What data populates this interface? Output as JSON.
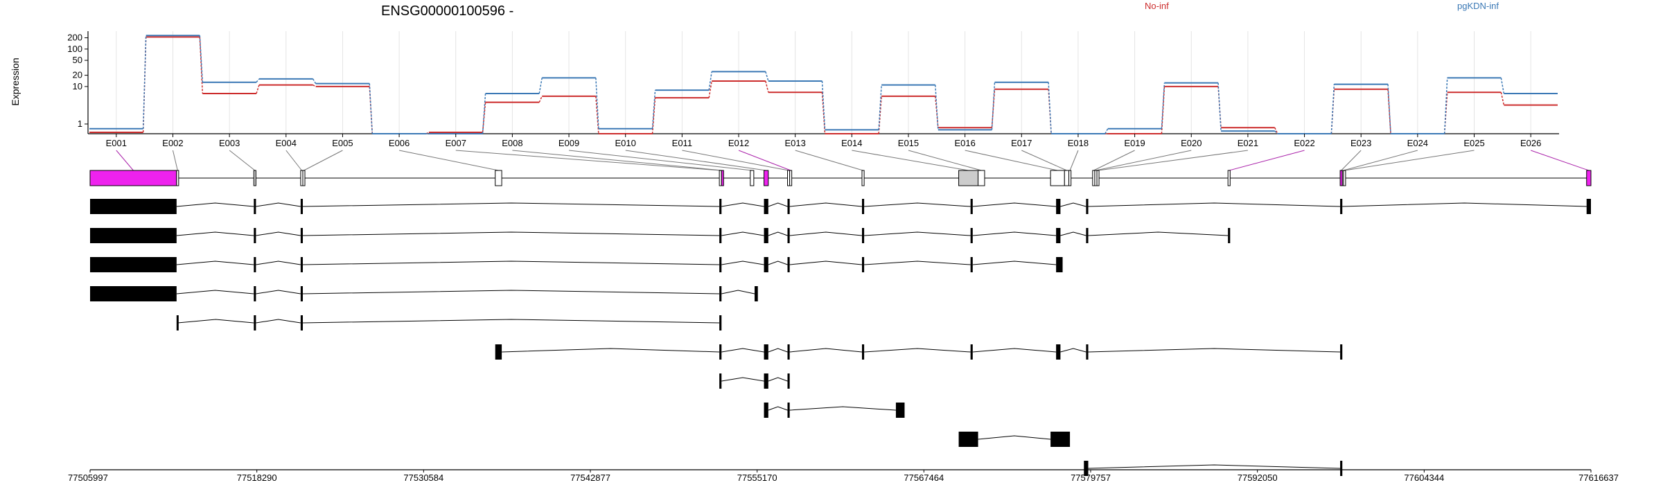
{
  "chart_data": {
    "type": "line",
    "title": "ENSG00000100596 -",
    "ylabel": "Expression",
    "y_scale": "log",
    "ylim": [
      0.55,
      300
    ],
    "y_ticks": [
      1,
      10,
      20,
      50,
      100,
      200
    ],
    "exons": [
      "E001",
      "E002",
      "E003",
      "E004",
      "E005",
      "E006",
      "E007",
      "E008",
      "E009",
      "E010",
      "E011",
      "E012",
      "E013",
      "E014",
      "E015",
      "E016",
      "E017",
      "E018",
      "E019",
      "E020",
      "E021",
      "E022",
      "E023",
      "E024",
      "E025",
      "E026"
    ],
    "series": [
      {
        "name": "No-inf",
        "color": "#cc2b2b",
        "values": [
          0.6,
          210,
          6.5,
          11,
          10,
          0.55,
          0.6,
          3.8,
          5.5,
          0.55,
          5,
          14,
          7,
          0.55,
          5.5,
          0.8,
          8.5,
          0.55,
          0.55,
          10,
          0.8,
          0.55,
          8.5,
          0.55,
          7,
          3.2
        ]
      },
      {
        "name": "pgKDN-inf",
        "color": "#3a78b5",
        "values": [
          0.75,
          230,
          13,
          16,
          12,
          0.55,
          0.55,
          6.5,
          17,
          0.75,
          8,
          25,
          14,
          0.7,
          11,
          0.7,
          13,
          0.55,
          0.75,
          12.5,
          0.65,
          0.55,
          11.5,
          0.55,
          17,
          6.5
        ]
      }
    ],
    "gene_track": {
      "coordinates": [
        "77505997",
        "77518290",
        "77530584",
        "77542877",
        "77555170",
        "77567464",
        "77579757",
        "77592050",
        "77604344",
        "77616637"
      ],
      "coord_start": 77505997,
      "coord_end": 77616637,
      "highlight_exons": [
        "E001",
        "E012",
        "E022",
        "E026"
      ],
      "exon_spans": [
        {
          "id": "E001",
          "start": 77505997,
          "end": 77512373,
          "fill": "#ee22ee"
        },
        {
          "id": "E002",
          "start": 77512373,
          "end": 77512453,
          "fill": "#ffffff"
        },
        {
          "id": "E003",
          "start": 77518066,
          "end": 77518226,
          "fill": "#cccccc"
        },
        {
          "id": "E004",
          "start": 77521520,
          "end": 77521680,
          "fill": "#ffffff"
        },
        {
          "id": "E005",
          "start": 77521680,
          "end": 77521730,
          "fill": "#ffffff"
        },
        {
          "id": "E006",
          "start": 77535864,
          "end": 77536344,
          "fill": "#ffffff"
        },
        {
          "id": "E007",
          "start": 77552385,
          "end": 77552545,
          "fill": "#ffffff"
        },
        {
          "id": "E008",
          "start": 77552545,
          "end": 77552625,
          "fill": "#ee22ee"
        },
        {
          "id": "E009",
          "start": 77554665,
          "end": 77554925,
          "fill": "#ffffff"
        },
        {
          "id": "E010",
          "start": 77555675,
          "end": 77555995,
          "fill": "#ee22ee"
        },
        {
          "id": "E011",
          "start": 77557410,
          "end": 77557570,
          "fill": "#ffffff"
        },
        {
          "id": "E012",
          "start": 77557570,
          "end": 77557650,
          "fill": "#ffffff"
        },
        {
          "id": "E013",
          "start": 77562900,
          "end": 77563060,
          "fill": "#ffffff"
        },
        {
          "id": "E014",
          "start": 77570030,
          "end": 77571460,
          "fill": "#cccccc"
        },
        {
          "id": "E015",
          "start": 77571460,
          "end": 77571940,
          "fill": "#ffffff"
        },
        {
          "id": "E016",
          "start": 77576800,
          "end": 77577830,
          "fill": "#ffffff"
        },
        {
          "id": "E017",
          "start": 77577830,
          "end": 77578150,
          "fill": "#ffffff"
        },
        {
          "id": "E018",
          "start": 77578150,
          "end": 77578310,
          "fill": "#ffffff"
        },
        {
          "id": "E019",
          "start": 77579900,
          "end": 77580060,
          "fill": "#ffffff"
        },
        {
          "id": "E020",
          "start": 77580060,
          "end": 77580220,
          "fill": "#ffffff"
        },
        {
          "id": "E021",
          "start": 77580220,
          "end": 77580300,
          "fill": "#ffffff"
        },
        {
          "id": "E022",
          "start": 77589880,
          "end": 77590040,
          "fill": "#ffffff"
        },
        {
          "id": "E023",
          "start": 77598150,
          "end": 77598310,
          "fill": "#ee22ee"
        },
        {
          "id": "E024",
          "start": 77598310,
          "end": 77598390,
          "fill": "#ffffff"
        },
        {
          "id": "E025",
          "start": 77598390,
          "end": 77598550,
          "fill": "#ffffff"
        },
        {
          "id": "E026",
          "start": 77616317,
          "end": 77616637,
          "fill": "#ee22ee"
        }
      ],
      "transcripts": [
        [
          [
            77505997,
            77512373
          ],
          [
            77518066,
            77518226
          ],
          [
            77521520,
            77521680
          ],
          [
            77552385,
            77552545
          ],
          [
            77555675,
            77555995
          ],
          [
            77557410,
            77557570
          ],
          [
            77562900,
            77563060
          ],
          [
            77570903,
            77571063
          ],
          [
            77577210,
            77577530
          ],
          [
            77579420,
            77579580
          ],
          [
            77598150,
            77598310
          ],
          [
            77616317,
            77616637
          ]
        ],
        [
          [
            77505997,
            77512373
          ],
          [
            77518066,
            77518226
          ],
          [
            77521520,
            77521680
          ],
          [
            77552385,
            77552545
          ],
          [
            77555675,
            77555995
          ],
          [
            77557410,
            77557570
          ],
          [
            77562900,
            77563060
          ],
          [
            77570903,
            77571063
          ],
          [
            77577210,
            77577530
          ],
          [
            77579420,
            77579580
          ],
          [
            77589880,
            77590040
          ]
        ],
        [
          [
            77505997,
            77512373
          ],
          [
            77518066,
            77518226
          ],
          [
            77521520,
            77521680
          ],
          [
            77552385,
            77552545
          ],
          [
            77555675,
            77555995
          ],
          [
            77557410,
            77557570
          ],
          [
            77562900,
            77563060
          ],
          [
            77570903,
            77571063
          ],
          [
            77577210,
            77577690
          ]
        ],
        [
          [
            77505997,
            77512373
          ],
          [
            77518066,
            77518226
          ],
          [
            77521520,
            77521680
          ],
          [
            77552385,
            77552545
          ],
          [
            77554984,
            77555224
          ]
        ],
        [
          [
            77512373,
            77512453
          ],
          [
            77518066,
            77518226
          ],
          [
            77521520,
            77521680
          ],
          [
            77552385,
            77552545
          ]
        ],
        [
          [
            77535864,
            77536344
          ],
          [
            77552385,
            77552545
          ],
          [
            77555675,
            77555995
          ],
          [
            77557410,
            77557570
          ],
          [
            77562900,
            77563060
          ],
          [
            77570903,
            77571063
          ],
          [
            77577210,
            77577530
          ],
          [
            77579420,
            77579580
          ],
          [
            77598150,
            77598310
          ]
        ],
        [
          [
            77552385,
            77552545
          ],
          [
            77555675,
            77555995
          ],
          [
            77557410,
            77557570
          ]
        ],
        [
          [
            77555675,
            77555995
          ],
          [
            77557410,
            77557570
          ],
          [
            77565400,
            77566040
          ]
        ],
        [
          [
            77570030,
            77571460
          ],
          [
            77576800,
            77578230
          ]
        ],
        [
          [
            77579260,
            77579580
          ],
          [
            77598150,
            77598310
          ]
        ]
      ]
    }
  },
  "legend": {
    "no_inf": {
      "label": "No-inf",
      "color": "#cc2b2b"
    },
    "pgkdn_inf": {
      "label": "pgKDN-inf",
      "color": "#3a78b5"
    }
  }
}
